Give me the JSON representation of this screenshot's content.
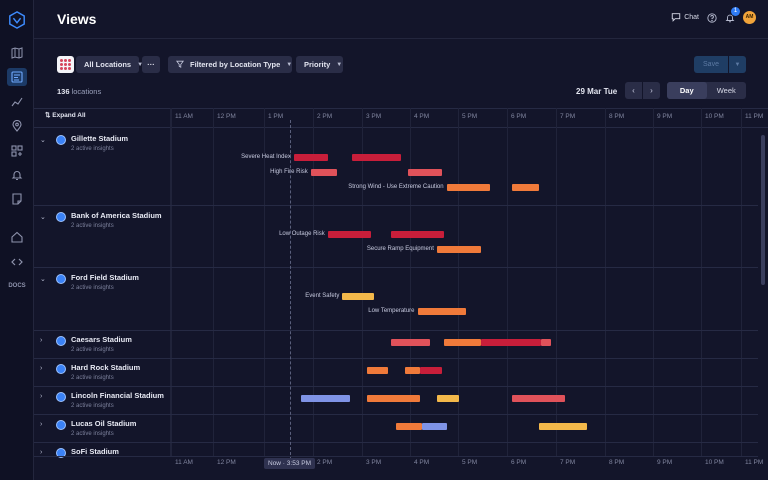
{
  "page": {
    "title": "Views"
  },
  "header": {
    "chat_label": "Chat",
    "notifications_count": "1",
    "avatar_initials": "AM"
  },
  "nav": {
    "docs_label": "DOCS"
  },
  "toolbar": {
    "locations_label": "All Locations",
    "more_label": "···",
    "filter_label": "Filtered by Location Type",
    "priority_label": "Priority",
    "save_label": "Save",
    "count_value": "136",
    "count_suffix": " locations",
    "date_label": "29 Mar Tue",
    "prev": "‹",
    "next": "›",
    "day_label": "Day",
    "week_label": "Week"
  },
  "timeline": {
    "expand_all": "Expand All",
    "hours": [
      "11 AM",
      "12 PM",
      "1 PM",
      "2 PM",
      "3 PM",
      "4 PM",
      "5 PM",
      "6 PM",
      "7 PM",
      "8 PM",
      "9 PM",
      "10 PM",
      "11 PM"
    ],
    "now_label": "Now · 3:53 PM"
  },
  "locations": [
    {
      "name": "Gillette Stadium",
      "sub": "2 active insights",
      "expanded": true
    },
    {
      "name": "Bank of America Stadium",
      "sub": "2 active insights",
      "expanded": true
    },
    {
      "name": "Ford Field Stadium",
      "sub": "2 active insights",
      "expanded": true
    },
    {
      "name": "Caesars Stadium",
      "sub": "2 active insights",
      "expanded": false
    },
    {
      "name": "Hard Rock Stadium",
      "sub": "2 active insights",
      "expanded": false
    },
    {
      "name": "Lincoln Financial Stadium",
      "sub": "2 active insights",
      "expanded": false
    },
    {
      "name": "Lucas Oil Stadium",
      "sub": "2 active insights",
      "expanded": false
    },
    {
      "name": "SoFi Stadium",
      "sub": "",
      "expanded": false
    }
  ],
  "insights": {
    "severe_heat": "Severe Heat Index",
    "high_fire": "High Fire Risk",
    "strong_wind": "Strong Wind - Use Extreme Caution",
    "low_outage": "Low Outage Risk",
    "secure_ramp": "Secure Ramp Equipment",
    "event_safety": "Event Safety",
    "low_temp": "Low Temperature"
  },
  "colors": {
    "critical": "#c81e3a",
    "high": "#e0525a",
    "warning": "#f07a3a",
    "caution": "#f3b84a",
    "info": "#7f93e6"
  }
}
